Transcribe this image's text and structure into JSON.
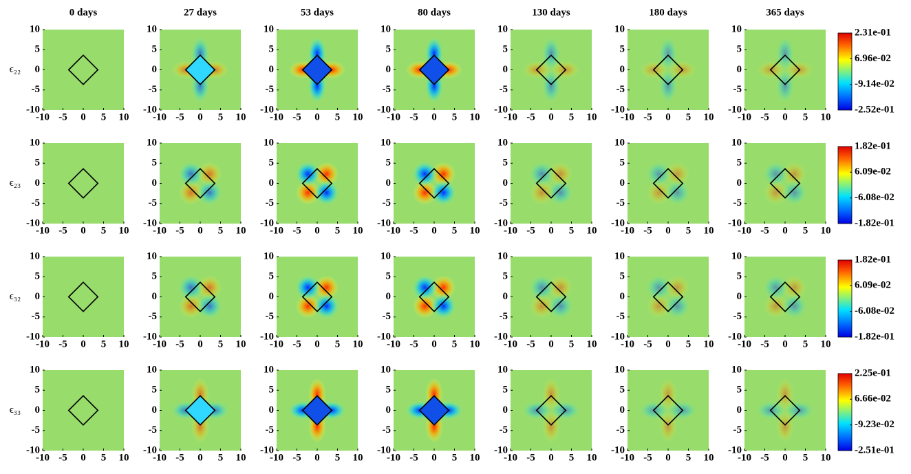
{
  "chart_data": {
    "type": "heatmap-grid",
    "columns": [
      "0 days",
      "27 days",
      "53 days",
      "80 days",
      "130 days",
      "180 days",
      "365 days"
    ],
    "rows": [
      {
        "label": "ϵ₂₂",
        "clim": [
          -0.252,
          0.231
        ],
        "cticks": [
          {
            "value": 0.231,
            "label": "2.31e-01"
          },
          {
            "value": 0.0696,
            "label": "6.96e-02"
          },
          {
            "value": -0.0914,
            "label": "-9.14e-02"
          },
          {
            "value": -0.252,
            "label": "-2.52e-01"
          }
        ]
      },
      {
        "label": "ϵ₂₃",
        "clim": [
          -0.182,
          0.182
        ],
        "cticks": [
          {
            "value": 0.182,
            "label": "1.82e-01"
          },
          {
            "value": 0.0609,
            "label": "6.09e-02"
          },
          {
            "value": -0.0608,
            "label": "-6.08e-02"
          },
          {
            "value": -0.182,
            "label": "-1.82e-01"
          }
        ]
      },
      {
        "label": "ϵ₃₂",
        "clim": [
          -0.182,
          0.182
        ],
        "cticks": [
          {
            "value": 0.182,
            "label": "1.82e-01"
          },
          {
            "value": 0.0609,
            "label": "6.09e-02"
          },
          {
            "value": -0.0608,
            "label": "-6.08e-02"
          },
          {
            "value": -0.182,
            "label": "-1.82e-01"
          }
        ]
      },
      {
        "label": "ϵ₃₃",
        "clim": [
          -0.251,
          0.225
        ],
        "cticks": [
          {
            "value": 0.225,
            "label": "2.25e-01"
          },
          {
            "value": 0.0666,
            "label": "6.66e-02"
          },
          {
            "value": -0.0923,
            "label": "-9.23e-02"
          },
          {
            "value": -0.251,
            "label": "-2.51e-01"
          }
        ]
      }
    ],
    "xlim": [
      -10,
      10
    ],
    "ylim": [
      -10,
      10
    ],
    "xticks": [
      -10,
      -5,
      0,
      5,
      10
    ],
    "yticks": [
      -10,
      -5,
      0,
      5,
      10
    ],
    "colormap": "jet"
  }
}
